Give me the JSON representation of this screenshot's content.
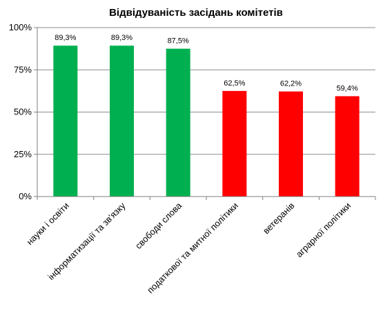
{
  "chart_data": {
    "type": "bar",
    "title": "Відвідуваність засідань комітетів",
    "categories": [
      "науки і освіти",
      "інформатизації та зв'язку",
      "свободи слова",
      "податкової та митної політики",
      "ветеранів",
      "аграрної політики"
    ],
    "values": [
      89.3,
      89.3,
      87.5,
      62.5,
      62.2,
      59.4
    ],
    "data_labels": [
      "89,3%",
      "89,3%",
      "87,5%",
      "62,5%",
      "62,2%",
      "59,4%"
    ],
    "bar_colors": [
      "#00b050",
      "#00b050",
      "#00b050",
      "#ff0000",
      "#ff0000",
      "#ff0000"
    ],
    "ylim": [
      0,
      100
    ],
    "y_ticks": [
      0,
      25,
      50,
      75,
      100
    ],
    "y_tick_labels": [
      "0%",
      "25%",
      "50%",
      "75%",
      "100%"
    ],
    "grid": true,
    "legend": "none"
  }
}
